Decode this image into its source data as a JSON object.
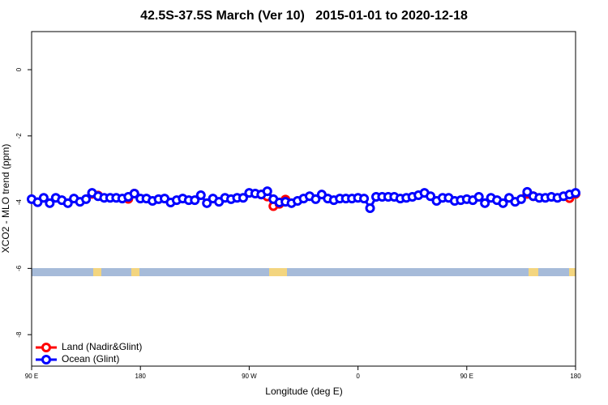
{
  "chart_data": {
    "type": "line",
    "title": "42.5S-37.5S March (Ver 10)   2015-01-01 to 2020-12-18",
    "xlabel": "Longitude (deg E)",
    "ylabel": "XCO2 - MLO trend (ppm)",
    "xlim": [
      90,
      540
    ],
    "ylim": [
      -8.95,
      1.15
    ],
    "xticks": [
      {
        "value": 90,
        "label": "90 E"
      },
      {
        "value": 180,
        "label": "180"
      },
      {
        "value": 270,
        "label": "90 W"
      },
      {
        "value": 360,
        "label": "0"
      },
      {
        "value": 450,
        "label": "90 E"
      },
      {
        "value": 540,
        "label": "180"
      }
    ],
    "yticks": [
      0,
      -2,
      -4,
      -6,
      -8
    ],
    "legend": "bottomleft",
    "x": [
      90,
      95,
      100,
      105,
      110,
      115,
      120,
      125,
      130,
      135,
      140,
      145,
      150,
      155,
      160,
      165,
      170,
      175,
      180,
      185,
      190,
      195,
      200,
      205,
      210,
      215,
      220,
      225,
      230,
      235,
      240,
      245,
      250,
      255,
      260,
      265,
      270,
      275,
      280,
      285,
      290,
      295,
      300,
      305,
      310,
      315,
      320,
      325,
      330,
      335,
      340,
      345,
      350,
      355,
      360,
      365,
      370,
      375,
      380,
      385,
      390,
      395,
      400,
      405,
      410,
      415,
      420,
      425,
      430,
      435,
      440,
      445,
      450,
      455,
      460,
      465,
      470,
      475,
      480,
      485,
      490,
      495,
      500,
      505,
      510,
      515,
      520,
      525,
      530,
      535,
      540
    ],
    "series": [
      {
        "name": "Land (Nadir&Glint)",
        "color": "#ff0000",
        "values": [
          null,
          null,
          null,
          null,
          null,
          null,
          null,
          null,
          null,
          null,
          -3.75,
          -3.8,
          null,
          null,
          null,
          null,
          -3.9,
          -3.74,
          null,
          null,
          null,
          null,
          null,
          null,
          null,
          null,
          null,
          null,
          null,
          null,
          null,
          null,
          null,
          null,
          null,
          null,
          null,
          null,
          -3.77,
          -3.83,
          -4.12,
          -4.05,
          -3.92,
          null,
          null,
          null,
          null,
          null,
          null,
          null,
          null,
          null,
          null,
          null,
          null,
          null,
          null,
          null,
          null,
          null,
          null,
          null,
          null,
          null,
          null,
          null,
          null,
          null,
          null,
          null,
          null,
          null,
          null,
          null,
          null,
          null,
          null,
          null,
          null,
          null,
          null,
          null,
          -3.75,
          -3.82,
          null,
          null,
          null,
          null,
          null,
          -3.88,
          -3.75
        ]
      },
      {
        "name": "Ocean (Glint)",
        "color": "#0000ff",
        "values": [
          -3.91,
          -4.0,
          -3.87,
          -4.03,
          -3.87,
          -3.94,
          -4.03,
          -3.89,
          -3.99,
          -3.91,
          -3.72,
          -3.82,
          -3.87,
          -3.87,
          -3.87,
          -3.89,
          -3.84,
          -3.74,
          -3.89,
          -3.89,
          -3.96,
          -3.91,
          -3.89,
          -4.01,
          -3.94,
          -3.89,
          -3.94,
          -3.94,
          -3.79,
          -4.03,
          -3.89,
          -3.99,
          -3.87,
          -3.91,
          -3.87,
          -3.87,
          -3.72,
          -3.74,
          -3.77,
          -3.67,
          -3.91,
          -4.01,
          -3.99,
          -4.03,
          -3.96,
          -3.89,
          -3.82,
          -3.91,
          -3.77,
          -3.89,
          -3.94,
          -3.89,
          -3.89,
          -3.89,
          -3.87,
          -3.89,
          -4.18,
          -3.84,
          -3.84,
          -3.84,
          -3.84,
          -3.89,
          -3.87,
          -3.84,
          -3.79,
          -3.72,
          -3.82,
          -3.96,
          -3.87,
          -3.87,
          -3.96,
          -3.94,
          -3.91,
          -3.94,
          -3.84,
          -4.03,
          -3.87,
          -3.94,
          -4.03,
          -3.87,
          -3.99,
          -3.91,
          -3.69,
          -3.82,
          -3.87,
          -3.87,
          -3.84,
          -3.87,
          -3.82,
          -3.77,
          -3.72
        ]
      }
    ]
  }
}
